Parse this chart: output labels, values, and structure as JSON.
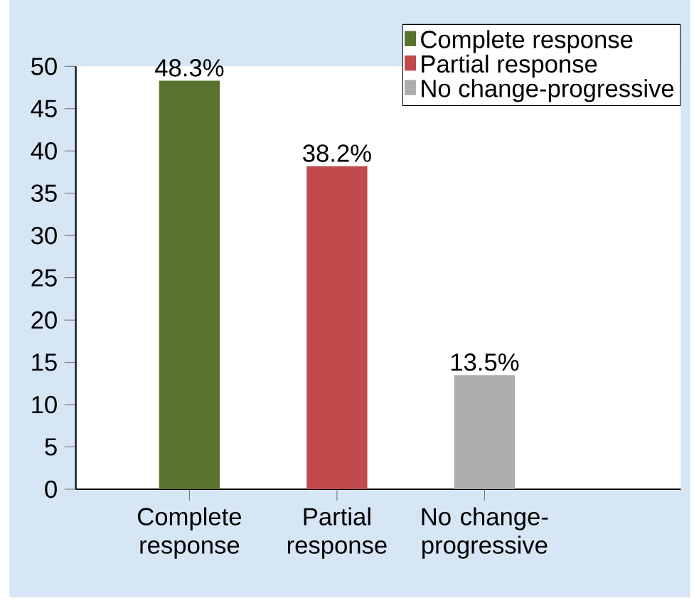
{
  "chart_data": {
    "type": "bar",
    "categories": [
      "Complete response",
      "Partial response",
      "No change-progressive"
    ],
    "series": [
      {
        "name": "Complete response",
        "color": "#5a722f",
        "values": [
          48.3,
          null,
          null
        ],
        "value_labels": [
          "48.3%",
          null,
          null
        ]
      },
      {
        "name": "Partial response",
        "color": "#c04a4c",
        "values": [
          null,
          38.2,
          null
        ],
        "value_labels": [
          null,
          "38.2%",
          null
        ]
      },
      {
        "name": "No change-progressive",
        "color": "#adadad",
        "values": [
          null,
          null,
          13.5
        ],
        "value_labels": [
          null,
          null,
          "13.5%"
        ]
      }
    ],
    "ylim": [
      0,
      50
    ],
    "yticks": [
      0,
      5,
      10,
      15,
      20,
      25,
      30,
      35,
      40,
      45,
      50
    ],
    "legend": "top right",
    "grid": false
  }
}
